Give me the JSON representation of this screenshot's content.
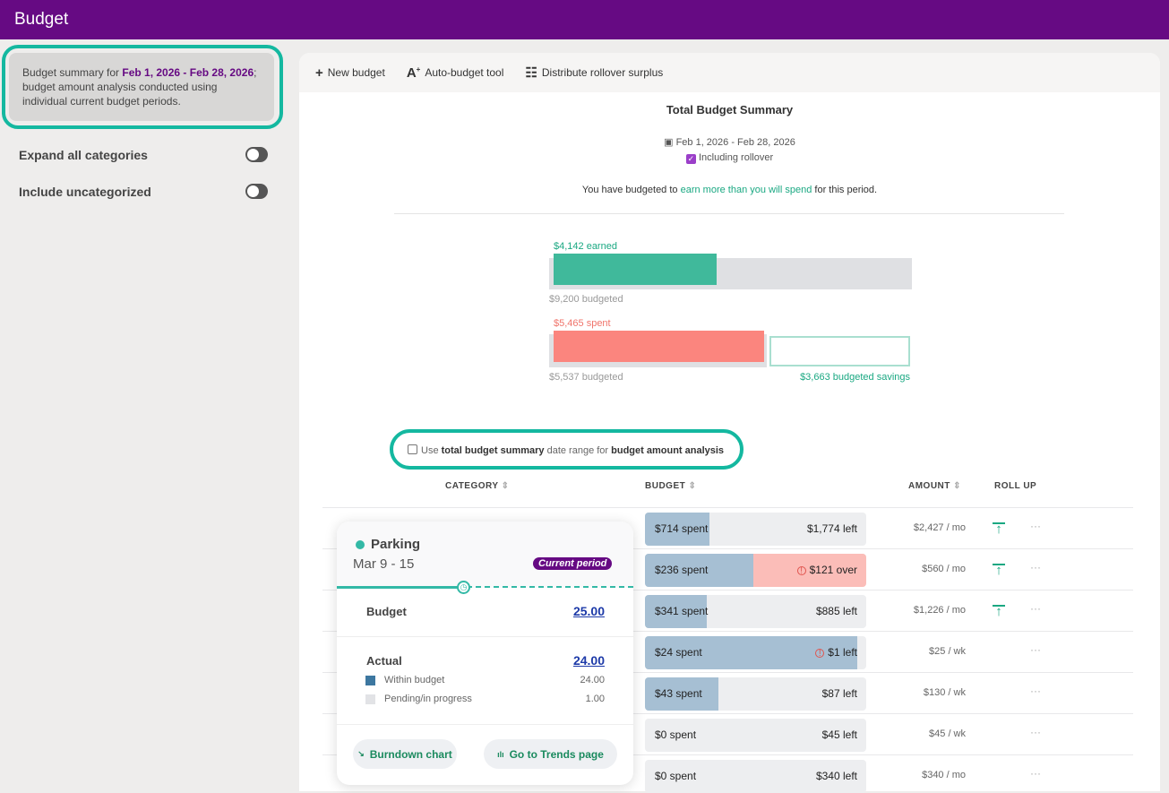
{
  "app": {
    "title": "Budget"
  },
  "sidebar": {
    "summary_prefix": "Budget summary for ",
    "summary_range": "Feb 1, 2026 - Feb 28, 2026",
    "summary_suffix": "; budget amount analysis conducted using individual current budget periods.",
    "toggles": [
      {
        "label": "Expand all categories",
        "on": false
      },
      {
        "label": "Include uncategorized",
        "on": false
      }
    ]
  },
  "toolbar": {
    "new_budget": "New budget",
    "auto_budget": "Auto-budget tool",
    "distribute": "Distribute rollover surplus"
  },
  "summary": {
    "title": "Total Budget Summary",
    "date_range": "Feb 1, 2026 - Feb 28, 2026",
    "rollover_label": "Including rollover",
    "rollover_checked": true,
    "sentence_prefix": "You have budgeted to ",
    "sentence_link": "earn more than you will spend",
    "sentence_suffix": " for this period.",
    "earned_label": "$4,142 earned",
    "earned_budgeted": "$9,200 budgeted",
    "earned": 4142,
    "income_budget": 9200,
    "spent_label": "$5,465 spent",
    "spent_budgeted": "$5,537 budgeted",
    "spent": 5465,
    "expense_budget": 5537,
    "savings_label": "$3,663 budgeted savings"
  },
  "analysis_option": {
    "pre": "Use ",
    "b1": "total budget summary",
    "mid": " date range for ",
    "b2": "budget amount analysis",
    "checked": false
  },
  "table": {
    "headers": {
      "category": "CATEGORY",
      "budget": "BUDGET",
      "amount": "AMOUNT",
      "rollup": "ROLL UP"
    },
    "rows": [
      {
        "spent": "$714 spent",
        "left": "$1,774 left",
        "fill": 0.29,
        "over": false,
        "warn": false,
        "amount": "$2,427 / mo",
        "rollup": true
      },
      {
        "spent": "$236 spent",
        "left": "$121 over",
        "fill": 0.49,
        "over": true,
        "warn": true,
        "amount": "$560 / mo",
        "rollup": true
      },
      {
        "spent": "$341 spent",
        "left": "$885 left",
        "fill": 0.28,
        "over": false,
        "warn": false,
        "amount": "$1,226 / mo",
        "rollup": true
      },
      {
        "spent": "$24 spent",
        "left": "$1 left",
        "fill": 0.96,
        "over": false,
        "warn": true,
        "amount": "$25 / wk",
        "rollup": false
      },
      {
        "spent": "$43 spent",
        "left": "$87 left",
        "fill": 0.33,
        "over": false,
        "warn": false,
        "amount": "$130 / wk",
        "rollup": false
      },
      {
        "spent": "$0 spent",
        "left": "$45 left",
        "fill": 0,
        "over": false,
        "warn": false,
        "amount": "$45 / wk",
        "rollup": false
      },
      {
        "spent": "$0 spent",
        "left": "$340 left",
        "fill": 0,
        "over": false,
        "warn": false,
        "amount": "$340 / mo",
        "rollup": false
      }
    ]
  },
  "popover": {
    "category": "Parking",
    "period": "Mar 9 - 15",
    "badge": "Current period",
    "budget_label": "Budget",
    "budget_value": "25.00",
    "actual_label": "Actual",
    "actual_value": "24.00",
    "within_label": "Within budget",
    "within_value": "24.00",
    "pending_label": "Pending/in progress",
    "pending_value": "1.00",
    "burndown": "Burndown chart",
    "trends": "Go to Trends page"
  }
}
